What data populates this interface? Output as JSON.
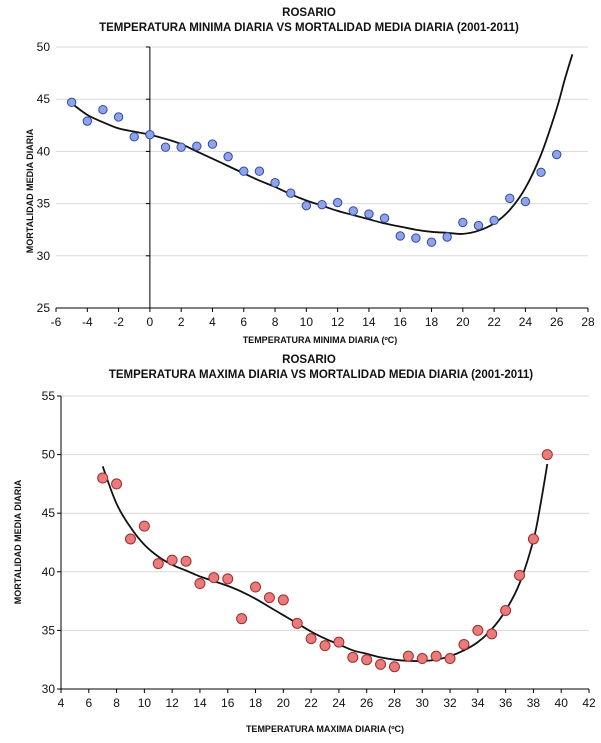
{
  "chart_data": [
    {
      "type": "scatter",
      "title": "ROSARIO",
      "subtitle": "TEMPERATURA MINIMA DIARIA VS MORTALIDAD MEDIA DIARIA (2001-2011)",
      "xlabel": "TEMPERATURA MINIMA DIARIA (ºC)",
      "ylabel": "MORTALIDAD MEDIA DIARIA",
      "xlim": [
        -6,
        28
      ],
      "ylim": [
        25,
        50
      ],
      "xticks": [
        -6,
        -4,
        -2,
        0,
        2,
        4,
        6,
        8,
        10,
        12,
        14,
        16,
        18,
        20,
        22,
        24,
        26,
        28
      ],
      "yticks": [
        25,
        30,
        35,
        40,
        45,
        50
      ],
      "grid": "horizontal",
      "marker_color": "#8fa3e6",
      "marker_edge": "#2f4aa8",
      "x": [
        -5,
        -4,
        -3,
        -2,
        -1,
        0,
        1,
        2,
        3,
        4,
        5,
        6,
        7,
        8,
        9,
        10,
        11,
        12,
        13,
        14,
        15,
        16,
        17,
        18,
        19,
        20,
        21,
        22,
        23,
        24,
        25,
        26
      ],
      "y": [
        44.7,
        42.9,
        44.0,
        43.3,
        41.4,
        41.6,
        40.4,
        40.4,
        40.5,
        40.7,
        39.5,
        38.1,
        38.1,
        37.0,
        36.0,
        34.8,
        34.9,
        35.1,
        34.3,
        34.0,
        33.6,
        31.9,
        31.7,
        31.3,
        31.8,
        33.2,
        32.9,
        33.4,
        35.5,
        35.2,
        38.0,
        39.7
      ],
      "trend": {
        "x": [
          -5,
          -4,
          -3,
          -2,
          -1,
          0,
          1,
          2,
          3,
          4,
          5,
          6,
          7,
          8,
          9,
          10,
          11,
          12,
          13,
          14,
          15,
          16,
          17,
          18,
          19,
          20,
          21,
          22,
          23,
          24,
          25,
          26,
          26.5,
          27
        ],
        "y": [
          44.6,
          43.5,
          42.8,
          42.2,
          41.9,
          41.6,
          41.2,
          40.7,
          40.0,
          39.3,
          38.6,
          37.9,
          37.2,
          36.6,
          35.9,
          35.3,
          34.8,
          34.3,
          33.9,
          33.5,
          33.1,
          32.8,
          32.5,
          32.3,
          32.2,
          32.1,
          32.4,
          33.1,
          34.4,
          36.5,
          39.7,
          44.1,
          46.8,
          49.3
        ]
      }
    },
    {
      "type": "scatter",
      "title": "ROSARIO",
      "subtitle": "TEMPERATURA MAXIMA DIARIA VS MORTALIDAD MEDIA DIARIA (2001-2011)",
      "xlabel": "TEMPERATURA MAXIMA DIARIA (ºC)",
      "ylabel": "MORTALIDAD MEDIA DIARIA",
      "xlim": [
        4,
        42
      ],
      "ylim": [
        30,
        55
      ],
      "xticks": [
        4,
        6,
        8,
        10,
        12,
        14,
        16,
        18,
        20,
        22,
        24,
        26,
        28,
        30,
        32,
        34,
        36,
        38,
        40,
        42
      ],
      "yticks": [
        30,
        35,
        40,
        45,
        50,
        55
      ],
      "grid": "horizontal",
      "marker_color": "#e87b7b",
      "marker_edge": "#a32b2b",
      "x": [
        7,
        8,
        9,
        10,
        11,
        12,
        13,
        14,
        15,
        16,
        17,
        18,
        19,
        20,
        21,
        22,
        23,
        24,
        25,
        26,
        27,
        28,
        29,
        30,
        31,
        32,
        33,
        34,
        35,
        36,
        37,
        38,
        39
      ],
      "y": [
        48.0,
        47.5,
        42.8,
        43.9,
        40.7,
        41.0,
        40.9,
        39.0,
        39.5,
        39.4,
        36.0,
        38.7,
        37.8,
        37.6,
        35.6,
        34.3,
        33.7,
        34.0,
        32.7,
        32.5,
        32.1,
        31.9,
        32.8,
        32.6,
        32.8,
        32.6,
        33.8,
        35.0,
        34.7,
        36.7,
        39.7,
        42.8,
        50.0
      ],
      "trend": {
        "x": [
          7,
          8,
          9,
          10,
          11,
          12,
          13,
          14,
          15,
          16,
          17,
          18,
          19,
          20,
          21,
          22,
          23,
          24,
          25,
          26,
          27,
          28,
          29,
          30,
          31,
          32,
          33,
          34,
          35,
          36,
          37,
          38,
          38.5,
          39
        ],
        "y": [
          49.0,
          45.8,
          43.8,
          42.3,
          41.3,
          40.6,
          40.1,
          39.6,
          39.2,
          38.8,
          38.3,
          37.7,
          37.0,
          36.3,
          35.6,
          34.9,
          34.3,
          33.8,
          33.3,
          33.0,
          32.7,
          32.5,
          32.4,
          32.4,
          32.5,
          32.8,
          33.3,
          34.0,
          35.1,
          36.7,
          39.0,
          42.7,
          45.7,
          49.2
        ]
      }
    }
  ]
}
